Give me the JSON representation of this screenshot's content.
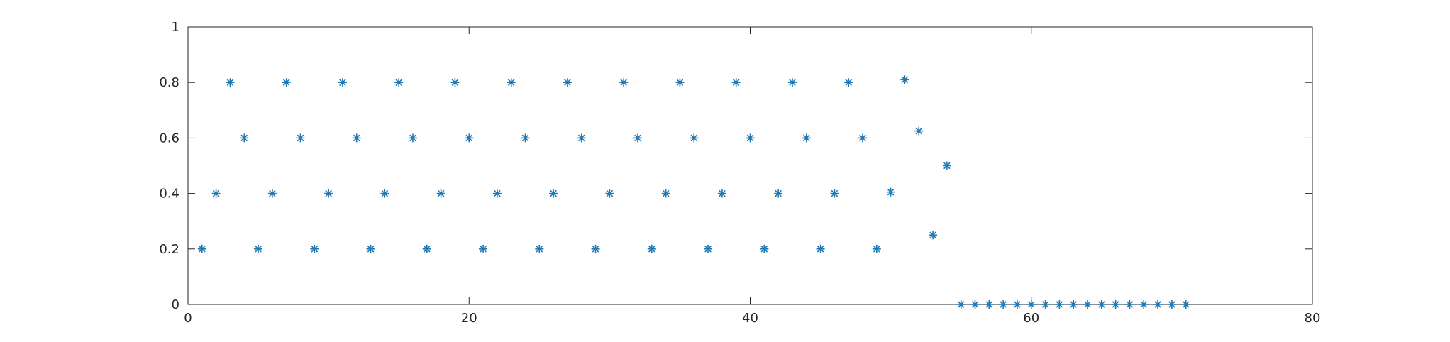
{
  "chart_data": {
    "type": "scatter",
    "title": "",
    "xlabel": "",
    "ylabel": "",
    "xlim": [
      0,
      80
    ],
    "ylim": [
      0,
      1
    ],
    "xticks": [
      "0",
      "20",
      "40",
      "60",
      "80"
    ],
    "yticks": [
      "0",
      "0.2",
      "0.4",
      "0.6",
      "0.8",
      "1"
    ],
    "grid": false,
    "legend": "none",
    "marker": "asterisk",
    "color": "#1f77b4",
    "series": [
      {
        "x": [
          1,
          2,
          3,
          4,
          5,
          6,
          7,
          8,
          9,
          10,
          11,
          12,
          13,
          14,
          15,
          16,
          17,
          18,
          19,
          20,
          21,
          22,
          23,
          24,
          25,
          26,
          27,
          28,
          29,
          30,
          31,
          32,
          33,
          34,
          35,
          36,
          37,
          38,
          39,
          40,
          41,
          42,
          43,
          44,
          45,
          46,
          47,
          48,
          49,
          50,
          51,
          52,
          53,
          54,
          55,
          56,
          57,
          58,
          59,
          60,
          61,
          62,
          63,
          64,
          65,
          66,
          67,
          68,
          69,
          70,
          71
        ],
        "y": [
          0.2,
          0.4,
          0.8,
          0.6,
          0.2,
          0.4,
          0.8,
          0.6,
          0.2,
          0.4,
          0.8,
          0.6,
          0.2,
          0.4,
          0.8,
          0.6,
          0.2,
          0.4,
          0.8,
          0.6,
          0.2,
          0.4,
          0.8,
          0.6,
          0.2,
          0.4,
          0.8,
          0.6,
          0.2,
          0.4,
          0.8,
          0.6,
          0.2,
          0.4,
          0.8,
          0.6,
          0.2,
          0.4,
          0.8,
          0.6,
          0.2,
          0.4,
          0.8,
          0.6,
          0.2,
          0.4,
          0.8,
          0.6,
          0.2,
          0.405,
          0.81,
          0.625,
          0.25,
          0.5,
          0,
          0,
          0,
          0,
          0,
          0,
          0,
          0,
          0,
          0,
          0,
          0,
          0,
          0,
          0,
          0,
          0
        ]
      }
    ]
  }
}
